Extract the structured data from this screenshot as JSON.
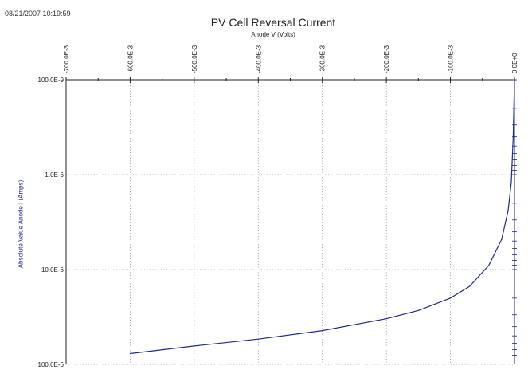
{
  "header": {
    "timestamp": "08/21/2007 10:19:59"
  },
  "colors": {
    "curve": "#1f2a8c",
    "axis": "#222222",
    "grid": "#888888",
    "ylabel": "#1a2a8a"
  },
  "chart_data": {
    "type": "line",
    "title": "PV Cell Reversal Current",
    "xlabel": "Anode V (Volts)",
    "ylabel": "Absolute Value Anode I (Amps)",
    "x_axis_position": "top",
    "xlim": [
      -0.7,
      0.0
    ],
    "ylim": [
      1e-07,
      0.0001
    ],
    "yscale": "log",
    "y_inverted": true,
    "grid": true,
    "x_ticks": [
      {
        "value": -0.7,
        "label": "-700.0E-3"
      },
      {
        "value": -0.6,
        "label": "-600.0E-3"
      },
      {
        "value": -0.5,
        "label": "-500.0E-3"
      },
      {
        "value": -0.4,
        "label": "-400.0E-3"
      },
      {
        "value": -0.3,
        "label": "-300.0E-3"
      },
      {
        "value": -0.2,
        "label": "-200.0E-3"
      },
      {
        "value": -0.1,
        "label": "-100.0E-3"
      },
      {
        "value": 0.0,
        "label": "0.0E+0"
      }
    ],
    "y_ticks": [
      {
        "value": 1e-07,
        "label": "100.0E-9"
      },
      {
        "value": 1e-06,
        "label": "1.0E-6"
      },
      {
        "value": 1e-05,
        "label": "10.0E-6"
      },
      {
        "value": 0.0001,
        "label": "100.0E-6"
      }
    ],
    "series": [
      {
        "x": [
          -0.6,
          -0.5,
          -0.4,
          -0.3,
          -0.2,
          -0.15,
          -0.1,
          -0.07,
          -0.04,
          -0.02,
          -0.01,
          -0.005,
          -0.002,
          0.0
        ],
        "y": [
          7.7e-05,
          6.4e-05,
          5.4e-05,
          4.4e-05,
          3.3e-05,
          2.7e-05,
          2e-05,
          1.5e-05,
          9e-06,
          4.8e-06,
          2.4e-06,
          1.2e-06,
          4e-07,
          1e-07
        ]
      }
    ]
  }
}
